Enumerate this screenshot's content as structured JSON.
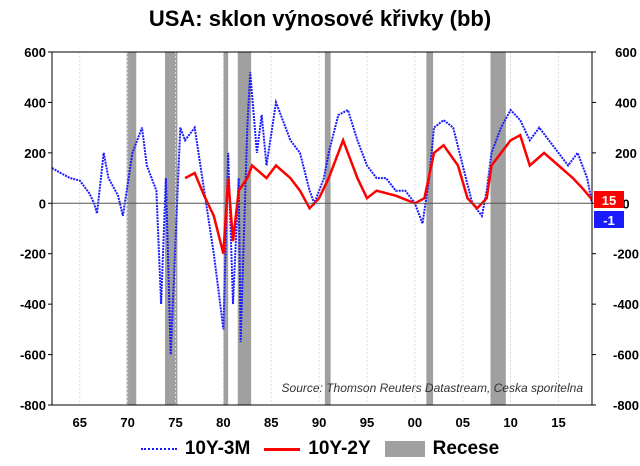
{
  "chart_data": {
    "type": "line",
    "title": "USA: sklon výnosové křivky (bb)",
    "source": "Source: Thomson Reuters Datastream, Ceska sporitelna",
    "xlim": [
      1962.1,
      2018.5
    ],
    "ylim": [
      -800,
      600
    ],
    "y_ticks": [
      "600",
      "400",
      "200",
      "0",
      "-200",
      "-400",
      "-600",
      "-800"
    ],
    "y_tick_values": [
      600,
      400,
      200,
      0,
      -200,
      -400,
      -600,
      -800
    ],
    "x_ticks": [
      "65",
      "70",
      "75",
      "80",
      "85",
      "90",
      "95",
      "00",
      "05",
      "10",
      "15"
    ],
    "x_tick_values": [
      1965,
      1970,
      1975,
      1980,
      1985,
      1990,
      1995,
      2000,
      2005,
      2010,
      2015
    ],
    "legend": [
      "10Y-3M",
      "10Y-2Y",
      "Recese"
    ],
    "legend_position": "bottom",
    "end_labels": {
      "10Y-2Y": "15",
      "10Y-3M": "-1"
    },
    "colors": {
      "10Y-3M": "#1a1aff",
      "10Y-2Y": "#ff0000",
      "Recese": "#a0a0a0"
    },
    "recessions": [
      [
        1969.9,
        1970.9
      ],
      [
        1973.9,
        1975.2
      ],
      [
        1980.0,
        1980.5
      ],
      [
        1981.5,
        1982.9
      ],
      [
        1990.6,
        1991.2
      ],
      [
        2001.2,
        2001.9
      ],
      [
        2007.9,
        2009.5
      ]
    ],
    "series": [
      {
        "name": "10Y-3M",
        "points": [
          [
            1962.1,
            140
          ],
          [
            1963,
            120
          ],
          [
            1964,
            100
          ],
          [
            1965,
            90
          ],
          [
            1966,
            40
          ],
          [
            1966.5,
            0
          ],
          [
            1966.8,
            -40
          ],
          [
            1967.5,
            200
          ],
          [
            1968,
            100
          ],
          [
            1969,
            30
          ],
          [
            1969.5,
            -50
          ],
          [
            1970.5,
            200
          ],
          [
            1971.5,
            300
          ],
          [
            1972,
            150
          ],
          [
            1973,
            50
          ],
          [
            1973.5,
            -400
          ],
          [
            1974,
            100
          ],
          [
            1974.5,
            -600
          ],
          [
            1975.5,
            300
          ],
          [
            1976,
            250
          ],
          [
            1977,
            300
          ],
          [
            1978,
            50
          ],
          [
            1979,
            -200
          ],
          [
            1980,
            -500
          ],
          [
            1980.5,
            200
          ],
          [
            1981,
            -400
          ],
          [
            1981.6,
            100
          ],
          [
            1981.8,
            -550
          ],
          [
            1982.5,
            300
          ],
          [
            1982.8,
            520
          ],
          [
            1983.5,
            200
          ],
          [
            1984,
            350
          ],
          [
            1984.5,
            150
          ],
          [
            1985.5,
            400
          ],
          [
            1986.5,
            300
          ],
          [
            1987,
            250
          ],
          [
            1988,
            200
          ],
          [
            1989,
            50
          ],
          [
            1989.5,
            0
          ],
          [
            1990,
            50
          ],
          [
            1990.5,
            100
          ],
          [
            1991,
            200
          ],
          [
            1992,
            350
          ],
          [
            1993,
            370
          ],
          [
            1994,
            250
          ],
          [
            1995,
            150
          ],
          [
            1996,
            100
          ],
          [
            1997,
            100
          ],
          [
            1998,
            50
          ],
          [
            1999,
            50
          ],
          [
            2000,
            0
          ],
          [
            2000.8,
            -80
          ],
          [
            2001.5,
            100
          ],
          [
            2002,
            300
          ],
          [
            2003,
            330
          ],
          [
            2004,
            300
          ],
          [
            2005,
            150
          ],
          [
            2006,
            0
          ],
          [
            2007,
            -50
          ],
          [
            2007.5,
            50
          ],
          [
            2008,
            200
          ],
          [
            2009,
            300
          ],
          [
            2010,
            370
          ],
          [
            2011,
            330
          ],
          [
            2012,
            250
          ],
          [
            2013,
            300
          ],
          [
            2014,
            250
          ],
          [
            2015,
            200
          ],
          [
            2016,
            150
          ],
          [
            2017,
            200
          ],
          [
            2018,
            100
          ],
          [
            2018.5,
            -1
          ]
        ]
      },
      {
        "name": "10Y-2Y",
        "points": [
          [
            1976,
            100
          ],
          [
            1977,
            120
          ],
          [
            1978,
            30
          ],
          [
            1979,
            -50
          ],
          [
            1980,
            -200
          ],
          [
            1980.5,
            100
          ],
          [
            1981,
            -150
          ],
          [
            1981.6,
            50
          ],
          [
            1982.5,
            100
          ],
          [
            1983,
            150
          ],
          [
            1984.5,
            100
          ],
          [
            1985.5,
            150
          ],
          [
            1987,
            100
          ],
          [
            1988,
            50
          ],
          [
            1989,
            -20
          ],
          [
            1990,
            20
          ],
          [
            1991,
            100
          ],
          [
            1992.5,
            250
          ],
          [
            1993,
            200
          ],
          [
            1994,
            100
          ],
          [
            1995,
            20
          ],
          [
            1996,
            50
          ],
          [
            1998,
            30
          ],
          [
            2000,
            0
          ],
          [
            2001,
            20
          ],
          [
            2002,
            200
          ],
          [
            2003,
            230
          ],
          [
            2004.5,
            150
          ],
          [
            2005.5,
            20
          ],
          [
            2006.5,
            -20
          ],
          [
            2007.5,
            20
          ],
          [
            2008,
            150
          ],
          [
            2010,
            250
          ],
          [
            2011,
            270
          ],
          [
            2012,
            150
          ],
          [
            2013.5,
            200
          ],
          [
            2015,
            150
          ],
          [
            2016.5,
            100
          ],
          [
            2017.5,
            60
          ],
          [
            2018.5,
            15
          ]
        ]
      }
    ]
  }
}
